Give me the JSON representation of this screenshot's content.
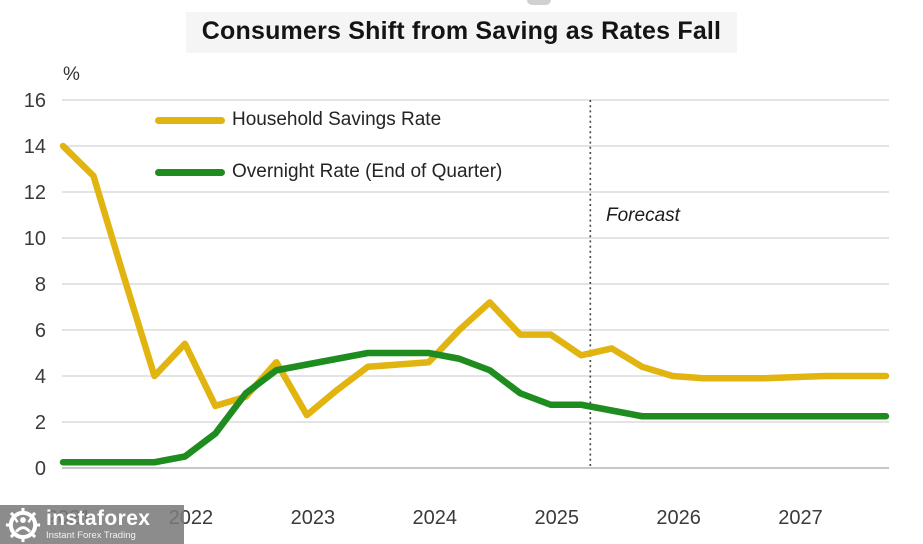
{
  "title": "Consumers Shift from Saving as Rates Fall",
  "y_axis": {
    "unit_label": "%",
    "ticks": [
      16,
      14,
      12,
      10,
      8,
      6,
      4,
      2,
      0
    ]
  },
  "x_axis": {
    "ticks": [
      "2021",
      "2022",
      "2023",
      "2024",
      "2025",
      "2026",
      "2027"
    ]
  },
  "legend": [
    {
      "label": "Household Savings Rate",
      "color": "#E2B410"
    },
    {
      "label": "Overnight Rate (End of Quarter)",
      "color": "#1E8C1E"
    }
  ],
  "annotations": {
    "forecast_label": "Forecast"
  },
  "watermark": {
    "brand": "instaforex",
    "tagline": "Instant Forex Trading"
  },
  "colors": {
    "savings_line": "#E2B410",
    "overnight_line": "#1E8C1E",
    "gridline": "#dcdcdc",
    "baseline": "#c7c7c7",
    "forecast_line": "#444444"
  },
  "chart_data": {
    "type": "line",
    "title": "Consumers Shift from Saving as Rates Fall",
    "y_unit": "%",
    "ylim": [
      0,
      16
    ],
    "grid": "horizontal",
    "legend_position": "top-left-inside",
    "x": [
      "2021 Q1",
      "2021 Q2",
      "2021 Q3",
      "2021 Q4",
      "2022 Q1",
      "2022 Q2",
      "2022 Q3",
      "2022 Q4",
      "2023 Q1",
      "2023 Q2",
      "2023 Q3",
      "2023 Q4",
      "2024 Q1",
      "2024 Q2",
      "2024 Q3",
      "2024 Q4",
      "2025 Q1",
      "2025 Q2",
      "2025 Q3",
      "2025 Q4",
      "2026 Q1",
      "2026 Q2",
      "2026 Q3",
      "2026 Q4",
      "2027 Q1",
      "2027 Q2",
      "2027 Q3",
      "2027 Q4"
    ],
    "series": [
      {
        "name": "Household Savings Rate",
        "color": "#E2B410",
        "values": [
          14.0,
          12.7,
          8.3,
          4.0,
          5.4,
          2.7,
          3.1,
          4.6,
          2.3,
          3.4,
          4.4,
          4.5,
          4.6,
          6.0,
          7.2,
          5.8,
          5.8,
          4.9,
          5.2,
          4.4,
          4.0,
          3.9,
          3.9,
          3.9,
          3.95,
          4.0,
          4.0,
          4.0
        ]
      },
      {
        "name": "Overnight Rate (End of Quarter)",
        "color": "#1E8C1E",
        "values": [
          0.25,
          0.25,
          0.25,
          0.25,
          0.5,
          1.5,
          3.25,
          4.25,
          4.5,
          4.75,
          5.0,
          5.0,
          5.0,
          4.75,
          4.25,
          3.25,
          2.75,
          2.75,
          2.5,
          2.25,
          2.25,
          2.25,
          2.25,
          2.25,
          2.25,
          2.25,
          2.25,
          2.25
        ]
      }
    ],
    "forecast_boundary_x_index": 17.3,
    "forecast_note": "Forecast region begins after 2025 Q2"
  }
}
